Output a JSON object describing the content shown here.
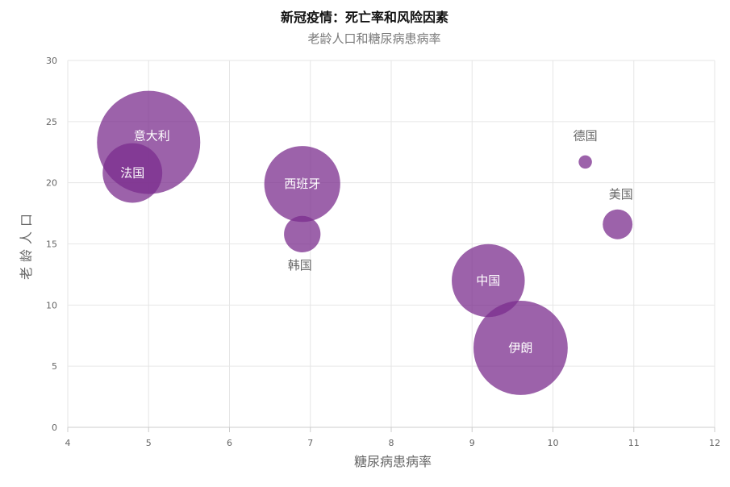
{
  "chart_data": {
    "type": "scatter",
    "title": "新冠疫情：死亡率和风险因素",
    "subtitle": "老龄人口和糖尿病患病率",
    "xlabel": "糖尿病患病率",
    "ylabel": "老龄人口",
    "xlim": [
      4,
      12
    ],
    "ylim": [
      0,
      30
    ],
    "x_ticks": [
      "4",
      "5",
      "6",
      "7",
      "8",
      "9",
      "10",
      "11",
      "12"
    ],
    "y_ticks": [
      "0",
      "5",
      "10",
      "15",
      "20",
      "25",
      "30"
    ],
    "grid": true,
    "bubble_color": "#7b2d8e",
    "points": [
      {
        "label": "意大利",
        "x": 5.0,
        "y": 23.3,
        "size": 12.0,
        "label_position": "inside"
      },
      {
        "label": "法国",
        "x": 4.8,
        "y": 20.8,
        "size": 4.0,
        "label_position": "inside"
      },
      {
        "label": "西班牙",
        "x": 6.9,
        "y": 19.9,
        "size": 6.5,
        "label_position": "inside"
      },
      {
        "label": "韩国",
        "x": 6.9,
        "y": 15.8,
        "size": 1.5,
        "label_position": "below"
      },
      {
        "label": "德国",
        "x": 10.4,
        "y": 21.7,
        "size": 0.2,
        "label_position": "above"
      },
      {
        "label": "美国",
        "x": 10.8,
        "y": 16.6,
        "size": 1.0,
        "label_position": "above"
      },
      {
        "label": "中国",
        "x": 9.2,
        "y": 12.0,
        "size": 6.0,
        "label_position": "inside"
      },
      {
        "label": "伊朗",
        "x": 9.6,
        "y": 6.5,
        "size": 10.0,
        "label_position": "inside"
      }
    ]
  }
}
